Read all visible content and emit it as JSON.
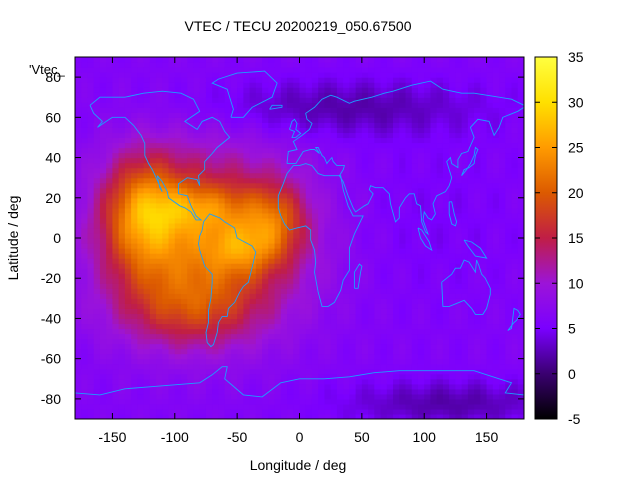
{
  "chart_data": {
    "type": "heatmap",
    "title": "VTEC / TECU 20200219_050.67500",
    "xlabel": "Longitude / deg",
    "ylabel": "Latitude / deg",
    "series_label": "'Vtec_",
    "xlim": [
      -180,
      180
    ],
    "ylim": [
      -90,
      90
    ],
    "xticks": [
      -150,
      -100,
      -50,
      0,
      50,
      100,
      150
    ],
    "yticks": [
      -80,
      -60,
      -40,
      -20,
      0,
      20,
      40,
      60,
      80
    ],
    "colorbar": {
      "range": [
        -5,
        35
      ],
      "ticks": [
        -5,
        0,
        5,
        10,
        15,
        20,
        25,
        30,
        35
      ],
      "palette": [
        "#000000",
        "#3a0070",
        "#7a00ff",
        "#9c14d8",
        "#c01e46",
        "#dc5a00",
        "#ff9b00",
        "#ffe000",
        "#ffff40"
      ]
    },
    "field": {
      "background": 6,
      "features": [
        {
          "name": "equatorial-anomaly-west",
          "lon": -125,
          "lat": 12,
          "sigma_lon": 22,
          "sigma_lat": 20,
          "amp": 13
        },
        {
          "name": "equatorial-anomaly-americas",
          "lon": -75,
          "lat": 0,
          "sigma_lon": 55,
          "sigma_lat": 30,
          "amp": 14
        },
        {
          "name": "crest-north",
          "lon": -80,
          "lat": 15,
          "sigma_lon": 25,
          "sigma_lat": 8,
          "amp": 6
        },
        {
          "name": "crest-south",
          "lon": -45,
          "lat": -5,
          "sigma_lon": 22,
          "sigma_lat": 9,
          "amp": 7
        },
        {
          "name": "atlantic-tail",
          "lon": -20,
          "lat": 10,
          "sigma_lon": 18,
          "sigma_lat": 12,
          "amp": 8
        },
        {
          "name": "southern-lobe",
          "lon": -90,
          "lat": -35,
          "sigma_lon": 40,
          "sigma_lat": 14,
          "amp": 7
        },
        {
          "name": "north-trough",
          "lon": 30,
          "lat": 65,
          "sigma_lon": 80,
          "sigma_lat": 10,
          "amp": -4
        },
        {
          "name": "south-trough",
          "lon": 120,
          "lat": -82,
          "sigma_lon": 60,
          "sigma_lat": 8,
          "amp": -4
        },
        {
          "name": "asia-mid",
          "lon": 100,
          "lat": 10,
          "sigma_lon": 60,
          "sigma_lat": 30,
          "amp": -1
        }
      ]
    }
  },
  "colors": {
    "coastline": "#1aa0ff",
    "frame": "#000000"
  }
}
